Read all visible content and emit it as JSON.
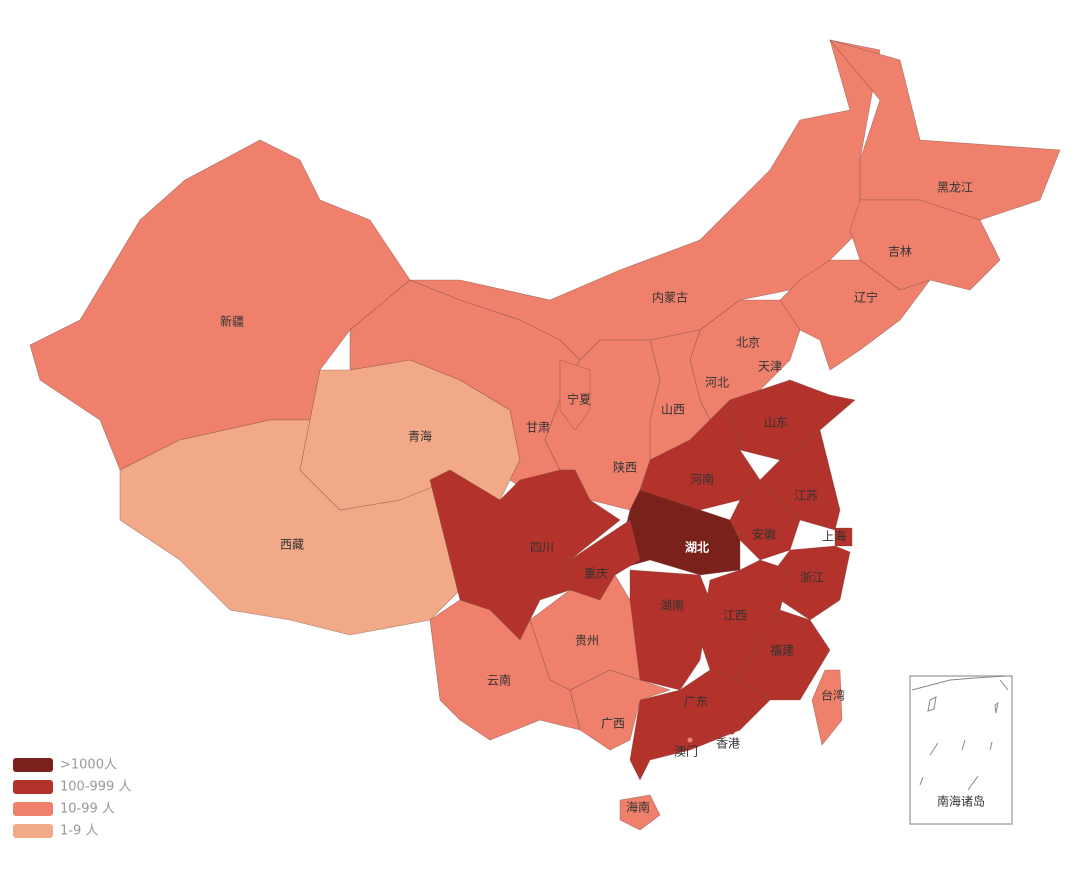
{
  "regions": [
    {
      "name": "新疆",
      "color": "#ee806c"
    },
    {
      "name": "西藏",
      "color": "#f2a987"
    },
    {
      "name": "青海",
      "color": "#f2a987"
    },
    {
      "name": "甘肃",
      "color": "#ee806c"
    },
    {
      "name": "内蒙古",
      "color": "#ee806c"
    },
    {
      "name": "黑龙江",
      "color": "#ee806c"
    },
    {
      "name": "吉林",
      "color": "#ee806c"
    },
    {
      "name": "辽宁",
      "color": "#ee806c"
    },
    {
      "name": "北京",
      "color": "#b3322b"
    },
    {
      "name": "天津",
      "color": "#ee806c"
    },
    {
      "name": "河北",
      "color": "#ee806c"
    },
    {
      "name": "山西",
      "color": "#ee806c"
    },
    {
      "name": "山东",
      "color": "#b3322b"
    },
    {
      "name": "河南",
      "color": "#b3322b"
    },
    {
      "name": "陕西",
      "color": "#ee806c"
    },
    {
      "name": "宁夏",
      "color": "#ee806c"
    },
    {
      "name": "江苏",
      "color": "#b3322b"
    },
    {
      "name": "上海",
      "color": "#b3322b"
    },
    {
      "name": "安徽",
      "color": "#b3322b"
    },
    {
      "name": "浙江",
      "color": "#b3322b"
    },
    {
      "name": "湖北",
      "color": "#7b211b"
    },
    {
      "name": "重庆",
      "color": "#b3322b"
    },
    {
      "name": "四川",
      "color": "#b3322b"
    },
    {
      "name": "湖南",
      "color": "#b3322b"
    },
    {
      "name": "江西",
      "color": "#b3322b"
    },
    {
      "name": "福建",
      "color": "#b3322b"
    },
    {
      "name": "广东",
      "color": "#b3322b"
    },
    {
      "name": "广西",
      "color": "#ee806c"
    },
    {
      "name": "贵州",
      "color": "#ee806c"
    },
    {
      "name": "云南",
      "color": "#ee806c"
    },
    {
      "name": "海南",
      "color": "#ee806c"
    },
    {
      "name": "台湾",
      "color": "#ee806c"
    },
    {
      "name": "香港",
      "color": "#b3322b"
    },
    {
      "name": "澳门",
      "color": "#ee806c"
    }
  ],
  "legend": [
    {
      "label": ">1000人",
      "color": "#7b211b"
    },
    {
      "label": "100-999 人",
      "color": "#b3322b"
    },
    {
      "label": "10-99 人",
      "color": "#ee806c"
    },
    {
      "label": "1-9 人",
      "color": "#f2a987"
    }
  ],
  "inset_label": "南海诸岛"
}
